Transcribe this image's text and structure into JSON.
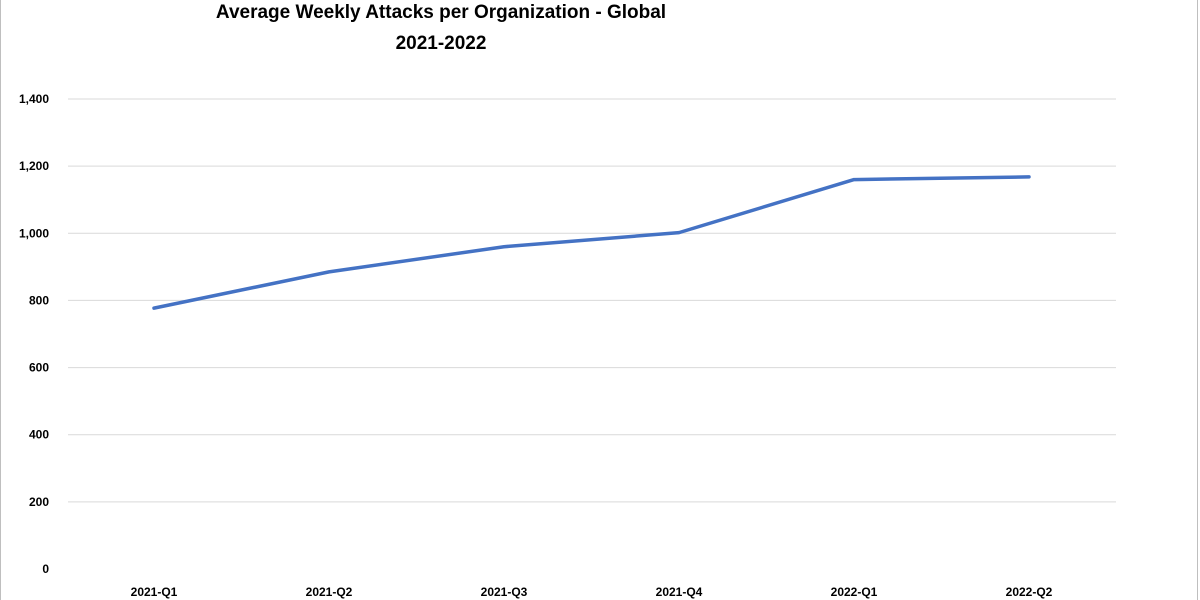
{
  "chart_data": {
    "type": "line",
    "title": "Average Weekly Attacks per Organization - Global",
    "subtitle": "2021-2022",
    "xlabel": "",
    "ylabel": "",
    "categories": [
      "2021-Q1",
      "2021-Q2",
      "2021-Q3",
      "2021-Q4",
      "2022-Q1",
      "2022-Q2"
    ],
    "series": [
      {
        "values": [
          777,
          885,
          960,
          1002,
          1160,
          1168
        ]
      }
    ],
    "ylim": [
      0,
      1400
    ],
    "yticks": [
      0,
      200,
      400,
      600,
      800,
      1000,
      1200,
      1400
    ],
    "ytick_labels": [
      "0",
      "200",
      "400",
      "600",
      "800",
      "1,000",
      "1,200",
      "1,400"
    ],
    "grid": true,
    "legend": "none",
    "line_color": "#4472c4",
    "grid_color": "#d9d9d9"
  }
}
